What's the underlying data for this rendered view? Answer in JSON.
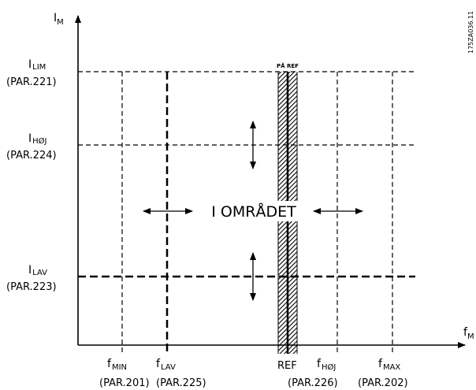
{
  "axes": {
    "y_main": "I",
    "y_sub": "M",
    "x_main": "f",
    "x_sub": "M"
  },
  "y_levels": [
    {
      "main": "I",
      "sub": "LIM",
      "par": "(PAR.221)"
    },
    {
      "main": "I",
      "sub": "HØJ",
      "par": "(PAR.224)"
    },
    {
      "main": "I",
      "sub": "LAV",
      "par": "(PAR.223)"
    }
  ],
  "x_levels": [
    {
      "main": "f",
      "sub": "MIN",
      "par": "(PAR.201)"
    },
    {
      "main": "f",
      "sub": "LAV",
      "par": "(PAR.225)"
    },
    {
      "main": "f",
      "sub": "HØJ",
      "par": "(PAR.226)"
    },
    {
      "main": "f",
      "sub": "MAX",
      "par": "(PAR.202)"
    }
  ],
  "ref": {
    "top_label": "PÅ REF",
    "bottom_label": "REF"
  },
  "region_label": "I OMRÅDET",
  "doc_code": "175ZA036.11"
}
